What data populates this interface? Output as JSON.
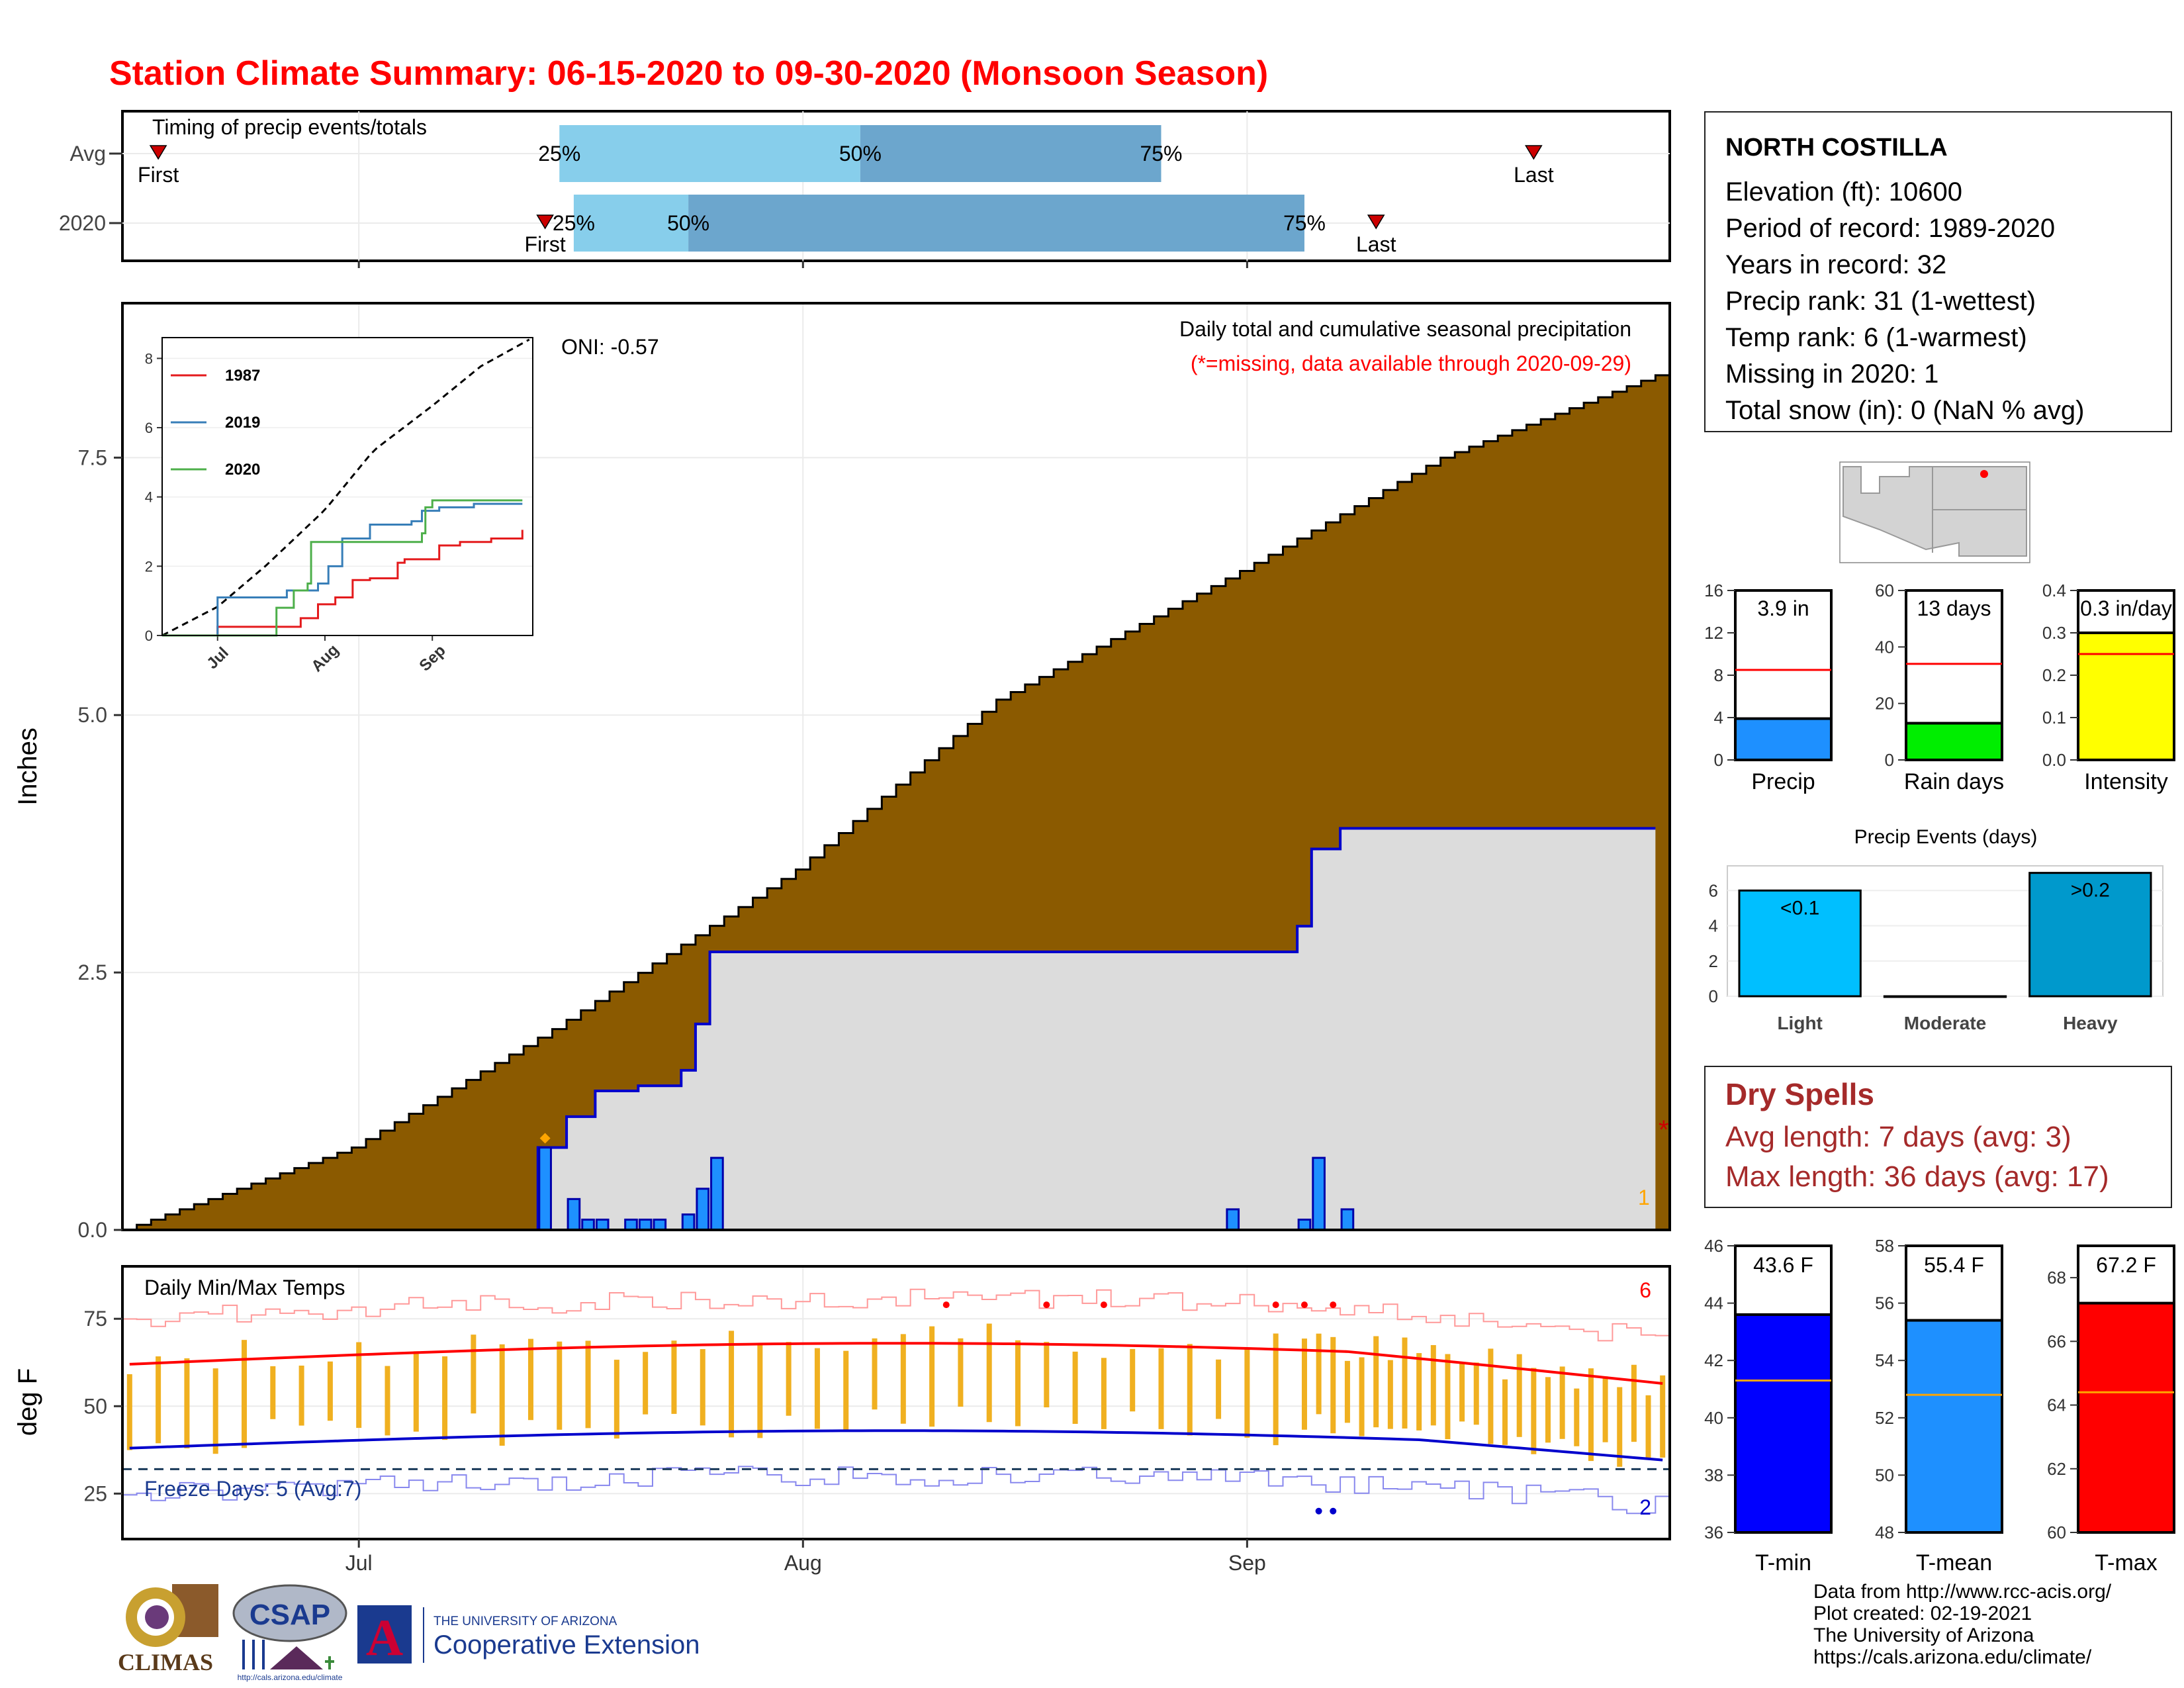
{
  "title": "Station Climate Summary: 06-15-2020 to 09-30-2020 (Monsoon Season)",
  "colors": {
    "title": "#ff0000",
    "cumulative_normal": "#8b5a00",
    "cumulative_2020_fill": "#dcdcdc",
    "line_2020": "#0000cc",
    "daily_bar": "#1e90ff",
    "temp_bar": "#f0b020",
    "tmax_line": "#ff0000",
    "tmin_line": "#0000cc",
    "dry_spells": "#a52a2a"
  },
  "x_axis": {
    "labels": [
      "Jul",
      "Aug",
      "Sep"
    ]
  },
  "timing": {
    "heading": "Timing of precip events/totals",
    "rows": [
      {
        "label": "Avg",
        "first_label": "First",
        "last_label": "Last",
        "p25": "25%",
        "p50": "50%",
        "p75": "75%",
        "first_day": 2,
        "last_day": 98,
        "p25_day": 30,
        "p50_day": 51,
        "p75_day": 72
      },
      {
        "label": "2020",
        "first_label": "First",
        "last_label": "Last",
        "p25": "25%",
        "p50": "50%",
        "p75": "75%",
        "first_day": 29,
        "last_day": 87,
        "p25_day": 31,
        "p50_day": 39,
        "p75_day": 82
      }
    ]
  },
  "precip_panel": {
    "title": "Daily total and cumulative seasonal precipitation",
    "subtitle": "(*=missing, data available through 2020-09-29)",
    "oni": "ONI: -0.57",
    "y_label": "Inches",
    "y_ticks": [
      "0.0",
      "2.5",
      "5.0",
      "7.5"
    ],
    "missing_marker": "*",
    "missing_count": "1"
  },
  "inset": {
    "y_ticks": [
      "0",
      "2",
      "4",
      "6",
      "8"
    ],
    "x_ticks": [
      "Jul",
      "Aug",
      "Sep"
    ],
    "legend": [
      {
        "name": "1987",
        "color": "#e41a1c"
      },
      {
        "name": "2019",
        "color": "#377eb8"
      },
      {
        "name": "2020",
        "color": "#4daf4a"
      }
    ]
  },
  "temp_panel": {
    "title": "Daily Min/Max Temps",
    "y_label": "deg F",
    "y_ticks": [
      "25",
      "50",
      "75"
    ],
    "freeze": "Freeze Days: 5 (Avg:7)",
    "max_record_count": "6",
    "min_record_count": "2"
  },
  "station": {
    "name": "NORTH COSTILLA",
    "lines": [
      "Elevation (ft): 10600",
      "Period of record: 1989-2020",
      "Years in record: 32",
      "Precip rank: 31 (1-wettest)",
      "Temp rank: 6 (1-warmest)",
      "Missing in 2020: 1",
      "Total snow (in): 0 (NaN % avg)"
    ]
  },
  "small_bars": [
    {
      "label": "Precip",
      "value_text": "3.9 in",
      "value": 3.9,
      "avg": 8.5,
      "ymax": 16,
      "ticks": [
        "0",
        "4",
        "8",
        "12",
        "16"
      ],
      "color": "#1e90ff"
    },
    {
      "label": "Rain days",
      "value_text": "13 days",
      "value": 13,
      "avg": 34,
      "ymax": 60,
      "ticks": [
        "0",
        "20",
        "40",
        "60"
      ],
      "color": "#00ee00"
    },
    {
      "label": "Intensity",
      "value_text": "0.3 in/day",
      "value": 0.3,
      "avg": 0.25,
      "ymax": 0.4,
      "ticks": [
        "0.0",
        "0.1",
        "0.2",
        "0.3",
        "0.4"
      ],
      "color": "#ffff00"
    }
  ],
  "events": {
    "title": "Precip Events (days)",
    "ticks": [
      "0",
      "2",
      "4",
      "6"
    ],
    "bars": [
      {
        "label": "Light",
        "value_text": "<0.1",
        "value": 6,
        "color": "#00bfff"
      },
      {
        "label": "Moderate",
        "value_text": "",
        "value": 0,
        "color": "#1e90ff"
      },
      {
        "label": "Heavy",
        "value_text": ">0.2",
        "value": 7,
        "color": "#0099cc"
      }
    ]
  },
  "dry_spells": {
    "title": "Dry Spells",
    "avg_length": "Avg length: 7 days (avg: 3)",
    "max_length": "Max length: 36 days (avg: 17)"
  },
  "temp_bars": [
    {
      "label": "T-min",
      "value_text": "43.6 F",
      "value": 43.6,
      "avg": 41.3,
      "ymin": 36,
      "ymax": 46,
      "ticks": [
        "36",
        "38",
        "40",
        "42",
        "44",
        "46"
      ],
      "color": "#0000ff"
    },
    {
      "label": "T-mean",
      "value_text": "55.4 F",
      "value": 55.4,
      "avg": 52.8,
      "ymin": 48,
      "ymax": 58,
      "ticks": [
        "48",
        "50",
        "52",
        "54",
        "56",
        "58"
      ],
      "color": "#1e90ff"
    },
    {
      "label": "T-max",
      "value_text": "67.2 F",
      "value": 67.2,
      "avg": 64.4,
      "ymin": 60,
      "ymax": 69,
      "ticks": [
        "60",
        "62",
        "64",
        "66",
        "68"
      ],
      "color": "#ff0000"
    }
  ],
  "credits": [
    "Data from http://www.rcc-acis.org/",
    "Plot created: 02-19-2021",
    "The University of Arizona",
    "https://cals.arizona.edu/climate/"
  ],
  "logos": {
    "climas": "CLIMAS",
    "csap": "CSAP",
    "csap_url": "http://cals.arizona.edu/climate",
    "ua_small": "THE UNIVERSITY OF ARIZONA",
    "ua_name": "Cooperative Extension",
    "ua_letter": "A"
  },
  "chart_data": {
    "type": "area",
    "title": "Daily total and cumulative seasonal precipitation",
    "ylabel": "Inches",
    "ylim": [
      0,
      9
    ],
    "x_start": "2020-06-15",
    "x_end": "2020-09-30",
    "series": [
      {
        "name": "cumulative_avg",
        "x": [
          "2020-06-15",
          "2020-07-01",
          "2020-07-15",
          "2020-08-01",
          "2020-08-15",
          "2020-09-01",
          "2020-09-15",
          "2020-09-30"
        ],
        "values": [
          0.0,
          0.8,
          1.95,
          3.5,
          5.15,
          6.4,
          7.5,
          8.3
        ]
      },
      {
        "name": "cumulative_2020",
        "x": [
          "2020-06-15",
          "2020-07-14",
          "2020-07-15",
          "2020-07-16",
          "2020-07-18",
          "2020-07-21",
          "2020-07-24",
          "2020-07-25",
          "2020-07-26",
          "2020-08-31",
          "2020-09-05",
          "2020-09-06",
          "2020-09-08"
        ],
        "values": [
          0.0,
          0.8,
          0.8,
          1.1,
          1.35,
          1.4,
          1.55,
          2.0,
          2.7,
          2.7,
          2.95,
          3.7,
          3.9
        ]
      },
      {
        "name": "daily_2020",
        "x": [
          "2020-07-14",
          "2020-07-16",
          "2020-07-17",
          "2020-07-18",
          "2020-07-20",
          "2020-07-21",
          "2020-07-22",
          "2020-07-24",
          "2020-07-25",
          "2020-07-26",
          "2020-08-31",
          "2020-09-05",
          "2020-09-06",
          "2020-09-08"
        ],
        "values": [
          0.8,
          0.3,
          0.1,
          0.1,
          0.1,
          0.1,
          0.1,
          0.15,
          0.4,
          0.7,
          0.2,
          0.1,
          0.7,
          0.2
        ]
      }
    ]
  }
}
